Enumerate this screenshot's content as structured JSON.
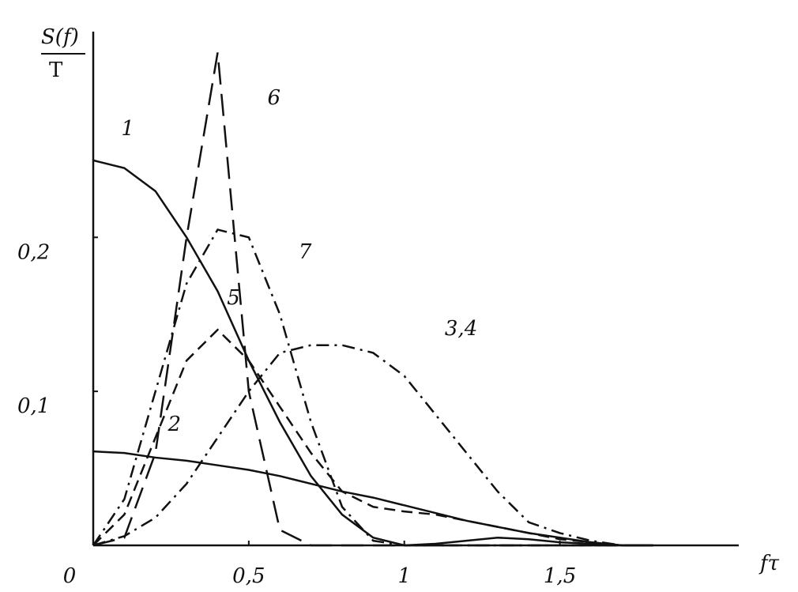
{
  "chart_data": {
    "type": "line",
    "y_label_numerator": "S(f)",
    "y_label_denominator": "T",
    "x_label": "fτ",
    "x": [
      0,
      0.1,
      0.2,
      0.3,
      0.4,
      0.5,
      0.6,
      0.7,
      0.8,
      0.9,
      1.0,
      1.1,
      1.2,
      1.3,
      1.4,
      1.5,
      1.6,
      1.7,
      1.8
    ],
    "series": [
      {
        "name": "1",
        "color": "#111111",
        "style": "solid",
        "values": [
          0.25,
          0.245,
          0.23,
          0.2,
          0.165,
          0.12,
          0.08,
          0.045,
          0.02,
          0.005,
          0,
          0.001,
          0.003,
          0.005,
          0.004,
          0.002,
          0.001,
          0,
          0
        ]
      },
      {
        "name": "2",
        "color": "#111111",
        "style": "solid",
        "values": [
          0.061,
          0.06,
          0.057,
          0.055,
          0.052,
          0.049,
          0.045,
          0.04,
          0.035,
          0.031,
          0.026,
          0.021,
          0.016,
          0.012,
          0.008,
          0.005,
          0.002,
          0,
          0
        ]
      },
      {
        "name": "3,4",
        "color": "#111111",
        "style": "dashdot",
        "values": [
          0,
          0.006,
          0.018,
          0.04,
          0.07,
          0.1,
          0.125,
          0.13,
          0.13,
          0.125,
          0.11,
          0.085,
          0.06,
          0.035,
          0.015,
          0.008,
          0.003,
          0,
          0
        ]
      },
      {
        "name": "5",
        "color": "#111111",
        "style": "dashed",
        "values": [
          0,
          0.02,
          0.07,
          0.12,
          0.14,
          0.12,
          0.09,
          0.06,
          0.035,
          0.025,
          0.022,
          0.02,
          0.016,
          0.012,
          0.008,
          0.004,
          0.002,
          0,
          0
        ]
      },
      {
        "name": "6",
        "color": "#111111",
        "style": "longdash",
        "values": [
          0,
          0.005,
          0.06,
          0.2,
          0.32,
          0.1,
          0.01,
          0,
          0,
          0,
          0,
          0,
          0,
          0,
          0,
          0,
          0,
          0,
          0
        ]
      },
      {
        "name": "7",
        "color": "#111111",
        "style": "dashdot",
        "values": [
          0,
          0.03,
          0.1,
          0.17,
          0.205,
          0.2,
          0.15,
          0.08,
          0.025,
          0.003,
          0,
          0,
          0,
          0,
          0,
          0,
          0,
          0,
          0
        ]
      }
    ],
    "xlim": [
      0,
      2.07
    ],
    "ylim": [
      0,
      0.33
    ],
    "xticks": [
      0,
      {
        "value": 0.5,
        "label": "0,5"
      },
      1,
      {
        "value": 1.5,
        "label": "1,5"
      }
    ],
    "yticks": [
      {
        "value": 0.1,
        "label": "0,1"
      },
      {
        "value": 0.2,
        "label": "0,2"
      }
    ]
  }
}
